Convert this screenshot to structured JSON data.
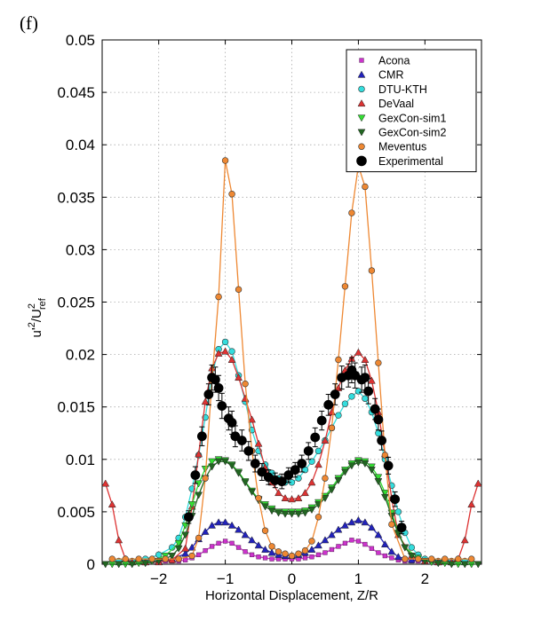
{
  "panel_label": "(f)",
  "chart_data": {
    "type": "line",
    "title": "",
    "xlabel": "Horizontal Displacement, Z/R",
    "ylabel": {
      "base": "u'",
      "sup1": "2",
      "mid": "/U",
      "sup2": "2",
      "sub": "ref"
    },
    "xlim": [
      -2.85,
      2.85
    ],
    "ylim": [
      0,
      0.05
    ],
    "x_ticks": [
      -2,
      -1,
      0,
      1,
      2
    ],
    "x_tick_labels": [
      "−2",
      "−1",
      "0",
      "1",
      "2"
    ],
    "y_ticks": [
      0,
      0.005,
      0.01,
      0.015,
      0.02,
      0.025,
      0.03,
      0.035,
      0.04,
      0.045,
      0.05
    ],
    "y_tick_labels": [
      "0",
      "0.005",
      "0.01",
      "0.015",
      "0.02",
      "0.025",
      "0.03",
      "0.035",
      "0.04",
      "0.045",
      "0.05"
    ],
    "grid": true,
    "legend_position": "top-right",
    "series": [
      {
        "name": "Acona",
        "marker": "square",
        "color": "#cc33cc",
        "line": true,
        "x": [
          -2.5,
          -2.3,
          -2.1,
          -1.9,
          -1.8,
          -1.7,
          -1.6,
          -1.5,
          -1.4,
          -1.3,
          -1.2,
          -1.1,
          -1.0,
          -0.9,
          -0.8,
          -0.7,
          -0.6,
          -0.5,
          -0.4,
          -0.3,
          -0.2,
          -0.1,
          0.0,
          0.1,
          0.2,
          0.3,
          0.4,
          0.5,
          0.6,
          0.7,
          0.8,
          0.9,
          1.0,
          1.1,
          1.2,
          1.3,
          1.4,
          1.5,
          1.6,
          1.7,
          1.8,
          1.9,
          2.1,
          2.3,
          2.5
        ],
        "y": [
          0.0003,
          0.0003,
          0.0003,
          0.0003,
          0.0003,
          0.0003,
          0.0004,
          0.0006,
          0.0009,
          0.0013,
          0.0017,
          0.002,
          0.0022,
          0.002,
          0.0016,
          0.0012,
          0.0009,
          0.0007,
          0.0006,
          0.0005,
          0.0005,
          0.0005,
          0.0005,
          0.0005,
          0.0006,
          0.0007,
          0.0009,
          0.0011,
          0.0014,
          0.0017,
          0.002,
          0.0023,
          0.0022,
          0.0019,
          0.0015,
          0.0011,
          0.0008,
          0.0006,
          0.0004,
          0.0003,
          0.0003,
          0.0003,
          0.0003,
          0.0003,
          0.0003
        ]
      },
      {
        "name": "CMR",
        "marker": "triangle-up",
        "color": "#2222bb",
        "line": true,
        "x": [
          -2.6,
          -2.4,
          -2.2,
          -2.0,
          -1.8,
          -1.6,
          -1.5,
          -1.4,
          -1.3,
          -1.2,
          -1.1,
          -1.0,
          -0.9,
          -0.8,
          -0.7,
          -0.6,
          -0.5,
          -0.4,
          -0.3,
          -0.2,
          -0.1,
          0.0,
          0.1,
          0.2,
          0.3,
          0.4,
          0.5,
          0.6,
          0.7,
          0.8,
          0.9,
          1.0,
          1.1,
          1.2,
          1.3,
          1.4,
          1.5,
          1.6,
          1.8,
          2.0,
          2.2,
          2.4,
          2.6
        ],
        "y": [
          0.0002,
          0.0002,
          0.0002,
          0.0003,
          0.0005,
          0.001,
          0.0016,
          0.0024,
          0.0031,
          0.0037,
          0.004,
          0.004,
          0.0037,
          0.0033,
          0.0028,
          0.0023,
          0.0018,
          0.0014,
          0.0011,
          0.0009,
          0.0008,
          0.0008,
          0.0009,
          0.0011,
          0.0014,
          0.0018,
          0.0023,
          0.0028,
          0.0033,
          0.0037,
          0.004,
          0.0042,
          0.004,
          0.0035,
          0.0028,
          0.0019,
          0.0012,
          0.0007,
          0.0004,
          0.0003,
          0.0002,
          0.0002,
          0.0002
        ]
      },
      {
        "name": "DTU-KTH",
        "marker": "circle",
        "color": "#33dddd",
        "line": true,
        "x": [
          -2.6,
          -2.4,
          -2.2,
          -2.0,
          -1.8,
          -1.7,
          -1.6,
          -1.5,
          -1.4,
          -1.3,
          -1.2,
          -1.1,
          -1.0,
          -0.9,
          -0.8,
          -0.7,
          -0.6,
          -0.5,
          -0.4,
          -0.3,
          -0.2,
          -0.1,
          0.0,
          0.1,
          0.2,
          0.3,
          0.4,
          0.5,
          0.6,
          0.7,
          0.8,
          0.9,
          1.0,
          1.1,
          1.2,
          1.3,
          1.4,
          1.5,
          1.6,
          1.7,
          1.8,
          1.9,
          2.0,
          2.2,
          2.4,
          2.6
        ],
        "y": [
          0.0003,
          0.0003,
          0.0005,
          0.0009,
          0.0016,
          0.0025,
          0.0045,
          0.0072,
          0.0104,
          0.014,
          0.018,
          0.0205,
          0.0212,
          0.0203,
          0.018,
          0.0155,
          0.0128,
          0.0108,
          0.0095,
          0.0087,
          0.0082,
          0.0078,
          0.0078,
          0.0082,
          0.009,
          0.0098,
          0.0108,
          0.0118,
          0.013,
          0.0142,
          0.0153,
          0.016,
          0.0165,
          0.0158,
          0.0145,
          0.0125,
          0.01,
          0.0075,
          0.005,
          0.003,
          0.0016,
          0.0009,
          0.0005,
          0.0003,
          0.0003,
          0.0003
        ]
      },
      {
        "name": "DeVaal",
        "marker": "triangle-up",
        "color": "#dd3333",
        "line": true,
        "x": [
          -2.8,
          -2.7,
          -2.6,
          -2.5,
          -2.4,
          -2.2,
          -2.0,
          -1.8,
          -1.6,
          -1.5,
          -1.4,
          -1.3,
          -1.2,
          -1.1,
          -1.0,
          -0.9,
          -0.8,
          -0.7,
          -0.6,
          -0.5,
          -0.4,
          -0.3,
          -0.2,
          -0.1,
          0.0,
          0.1,
          0.2,
          0.3,
          0.4,
          0.5,
          0.6,
          0.7,
          0.8,
          0.9,
          1.0,
          1.1,
          1.2,
          1.3,
          1.4,
          1.5,
          1.6,
          1.8,
          2.0,
          2.2,
          2.4,
          2.5,
          2.6,
          2.7,
          2.8
        ],
        "y": [
          0.0077,
          0.0057,
          0.0023,
          0.0005,
          0.0002,
          0.0002,
          0.0002,
          0.0004,
          0.0015,
          0.0055,
          0.0105,
          0.0155,
          0.0187,
          0.0201,
          0.0203,
          0.0195,
          0.0178,
          0.0158,
          0.0138,
          0.0115,
          0.0092,
          0.0078,
          0.0068,
          0.0063,
          0.0062,
          0.0063,
          0.0068,
          0.0078,
          0.0095,
          0.0118,
          0.0145,
          0.0168,
          0.0185,
          0.0196,
          0.0202,
          0.0195,
          0.0175,
          0.0145,
          0.0105,
          0.0063,
          0.0028,
          0.0008,
          0.0003,
          0.0002,
          0.0002,
          0.0005,
          0.0023,
          0.0057,
          0.0077
        ]
      },
      {
        "name": "GexCon-sim1",
        "marker": "triangle-down",
        "color": "#33dd33",
        "line": true,
        "x": [
          -2.7,
          -2.5,
          -2.3,
          -2.1,
          -1.9,
          -1.7,
          -1.6,
          -1.5,
          -1.4,
          -1.3,
          -1.2,
          -1.1,
          -1.0,
          -0.9,
          -0.8,
          -0.7,
          -0.6,
          -0.5,
          -0.4,
          -0.3,
          -0.2,
          -0.1,
          0.0,
          0.1,
          0.2,
          0.3,
          0.4,
          0.5,
          0.6,
          0.7,
          0.8,
          0.9,
          1.0,
          1.1,
          1.2,
          1.3,
          1.4,
          1.5,
          1.6,
          1.7,
          1.9,
          2.1,
          2.3,
          2.5,
          2.7
        ],
        "y": [
          0,
          0,
          0.0001,
          0.0003,
          0.0008,
          0.002,
          0.0037,
          0.0057,
          0.0077,
          0.0091,
          0.0098,
          0.01,
          0.0099,
          0.0095,
          0.0088,
          0.0079,
          0.007,
          0.0062,
          0.0057,
          0.0053,
          0.005,
          0.005,
          0.005,
          0.005,
          0.0051,
          0.0054,
          0.0059,
          0.0065,
          0.0073,
          0.0082,
          0.009,
          0.0096,
          0.0099,
          0.0098,
          0.0093,
          0.0083,
          0.0068,
          0.0049,
          0.003,
          0.0016,
          0.0006,
          0.0002,
          0.0001,
          0,
          0
        ]
      },
      {
        "name": "GexCon-sim2",
        "marker": "triangle-down",
        "color": "#226622",
        "line": true,
        "x": [
          -2.8,
          -2.6,
          -2.4,
          -2.2,
          -2.0,
          -1.8,
          -1.7,
          -1.6,
          -1.5,
          -1.4,
          -1.3,
          -1.2,
          -1.1,
          -1.0,
          -0.9,
          -0.8,
          -0.7,
          -0.6,
          -0.5,
          -0.4,
          -0.3,
          -0.2,
          -0.1,
          0.0,
          0.1,
          0.2,
          0.3,
          0.4,
          0.5,
          0.6,
          0.7,
          0.8,
          0.9,
          1.0,
          1.1,
          1.2,
          1.3,
          1.4,
          1.5,
          1.6,
          1.7,
          1.8,
          2.0,
          2.2,
          2.4,
          2.6,
          2.8
        ],
        "y": [
          0,
          0,
          0,
          0.0001,
          0.0003,
          0.0008,
          0.0015,
          0.0028,
          0.0046,
          0.0066,
          0.0082,
          0.0093,
          0.0098,
          0.0098,
          0.0094,
          0.0087,
          0.0078,
          0.0069,
          0.0061,
          0.0055,
          0.0051,
          0.0049,
          0.0048,
          0.0048,
          0.0048,
          0.0049,
          0.0052,
          0.0057,
          0.0063,
          0.0071,
          0.008,
          0.0088,
          0.0094,
          0.0097,
          0.0096,
          0.009,
          0.0079,
          0.0064,
          0.0046,
          0.0029,
          0.0016,
          0.0008,
          0.0003,
          0.0001,
          0,
          0,
          0
        ]
      },
      {
        "name": "Meventus",
        "marker": "circle",
        "color": "#ee8833",
        "line": true,
        "x": [
          -2.7,
          -2.5,
          -2.3,
          -2.1,
          -1.9,
          -1.7,
          -1.5,
          -1.4,
          -1.3,
          -1.2,
          -1.1,
          -1.0,
          -0.9,
          -0.8,
          -0.7,
          -0.6,
          -0.5,
          -0.4,
          -0.3,
          -0.2,
          -0.1,
          0.0,
          0.1,
          0.2,
          0.3,
          0.4,
          0.5,
          0.6,
          0.7,
          0.8,
          0.9,
          1.0,
          1.1,
          1.2,
          1.3,
          1.4,
          1.5,
          1.7,
          1.9,
          2.1,
          2.3,
          2.5,
          2.7
        ],
        "y": [
          0.0005,
          0.0005,
          0.0005,
          0.0005,
          0.0005,
          0.0005,
          0.0008,
          0.0025,
          0.0082,
          0.0175,
          0.0255,
          0.0385,
          0.0353,
          0.0262,
          0.0172,
          0.0108,
          0.0063,
          0.0032,
          0.0017,
          0.0012,
          0.001,
          0.0008,
          0.001,
          0.0013,
          0.0022,
          0.0045,
          0.0082,
          0.013,
          0.0195,
          0.0265,
          0.0335,
          0.038,
          0.036,
          0.028,
          0.0192,
          0.0104,
          0.0038,
          0.0005,
          0.0005,
          0.0005,
          0.0005,
          0.0005,
          0.0005
        ]
      },
      {
        "name": "Experimental",
        "marker": "circle-filled",
        "color": "#000000",
        "line": false,
        "x": [
          -1.55,
          -1.45,
          -1.35,
          -1.25,
          -1.2,
          -1.15,
          -1.1,
          -1.05,
          -0.95,
          -0.9,
          -0.85,
          -0.75,
          -0.65,
          -0.55,
          -0.45,
          -0.35,
          -0.25,
          -0.15,
          -0.05,
          0.05,
          0.15,
          0.25,
          0.35,
          0.45,
          0.55,
          0.65,
          0.75,
          0.85,
          0.9,
          0.95,
          1.05,
          1.1,
          1.15,
          1.25,
          1.3,
          1.35,
          1.45,
          1.55,
          1.65
        ],
        "y": [
          0.0045,
          0.0085,
          0.0122,
          0.0162,
          0.0178,
          0.0176,
          0.0168,
          0.0151,
          0.0139,
          0.0135,
          0.0122,
          0.0118,
          0.0108,
          0.0096,
          0.0088,
          0.0083,
          0.008,
          0.0079,
          0.0085,
          0.009,
          0.0096,
          0.0108,
          0.0121,
          0.0137,
          0.0152,
          0.0162,
          0.0178,
          0.018,
          0.0185,
          0.018,
          0.0176,
          0.0178,
          0.0165,
          0.0148,
          0.0138,
          0.0118,
          0.0094,
          0.0062,
          0.0035
        ],
        "err": [
          0.0006,
          0.0008,
          0.0009,
          0.001,
          0.0012,
          0.0012,
          0.0012,
          0.0012,
          0.0011,
          0.0011,
          0.001,
          0.001,
          0.0009,
          0.0008,
          0.0008,
          0.0007,
          0.0007,
          0.0007,
          0.0007,
          0.0007,
          0.0008,
          0.0008,
          0.0009,
          0.0009,
          0.001,
          0.001,
          0.0011,
          0.0011,
          0.0012,
          0.0012,
          0.0012,
          0.0012,
          0.0012,
          0.001,
          0.001,
          0.0009,
          0.0008,
          0.0007,
          0.0006
        ]
      }
    ]
  }
}
